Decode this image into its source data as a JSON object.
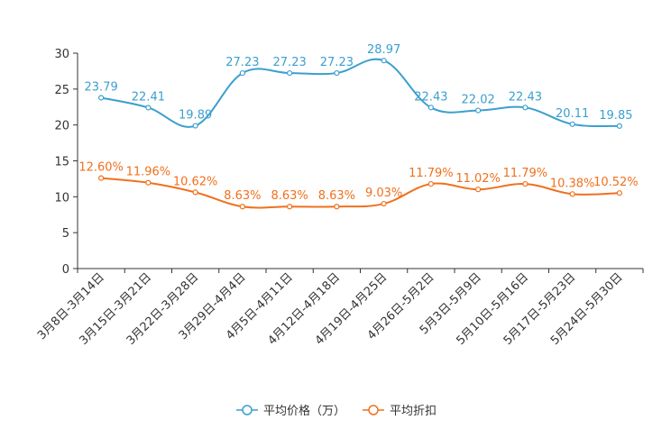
{
  "chart_data": {
    "type": "line",
    "title": "",
    "xlabel": "",
    "ylabel": "",
    "ylim": [
      0,
      30
    ],
    "yticks": [
      0,
      5,
      10,
      15,
      20,
      25,
      30
    ],
    "categories": [
      "3月8日-3月14日",
      "3月15日-3月21日",
      "3月22日-3月28日",
      "3月29日-4月4日",
      "4月5日-4月11日",
      "4月12日-4月18日",
      "4月19日-4月25日",
      "4月26日-5月2日",
      "5月3日-5月9日",
      "5月10日-5月16日",
      "5月17日-5月23日",
      "5月24日-5月30日"
    ],
    "series": [
      {
        "name": "平均价格（万）",
        "color": "#3b9fcf",
        "values": [
          23.79,
          22.41,
          19.89,
          27.23,
          27.23,
          27.23,
          28.97,
          22.43,
          22.02,
          22.43,
          20.11,
          19.85
        ],
        "labels": [
          "23.79",
          "22.41",
          "19.89",
          "27.23",
          "27.23",
          "27.23",
          "28.97",
          "22.43",
          "22.02",
          "22.43",
          "20.11",
          "19.85"
        ]
      },
      {
        "name": "平均折扣",
        "color": "#f0701e",
        "values": [
          12.6,
          11.96,
          10.62,
          8.63,
          8.63,
          8.63,
          9.03,
          11.79,
          11.02,
          11.79,
          10.38,
          10.52
        ],
        "labels": [
          "12.60%",
          "11.96%",
          "10.62%",
          "8.63%",
          "8.63%",
          "8.63%",
          "9.03%",
          "11.79%",
          "11.02%",
          "11.79%",
          "10.38%",
          "10.52%"
        ]
      }
    ],
    "legend_position": "bottom-center",
    "grid": false
  }
}
